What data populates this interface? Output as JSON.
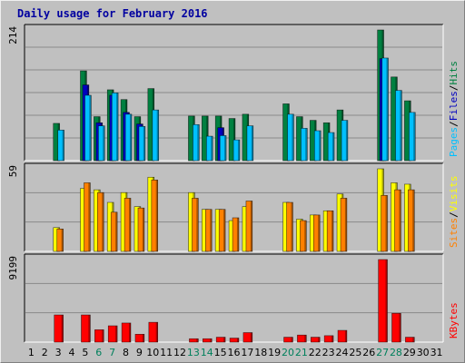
{
  "chart_data": {
    "type": "bar",
    "title": "Daily usage for February 2016",
    "x": [
      "1",
      "2",
      "3",
      "4",
      "5",
      "6",
      "7",
      "8",
      "9",
      "10",
      "11",
      "12",
      "13",
      "14",
      "15",
      "16",
      "17",
      "18",
      "19",
      "20",
      "21",
      "22",
      "23",
      "24",
      "25",
      "26",
      "27",
      "28",
      "29",
      "30",
      "31"
    ],
    "weekend_days": [
      "6",
      "7",
      "13",
      "14",
      "20",
      "21",
      "27",
      "28"
    ],
    "colors": {
      "hits": "#008040",
      "files": "#0000c0",
      "pages": "#00c0ff",
      "visits": "#ffff00",
      "sites": "#ff8000",
      "kbytes": "#ff0000",
      "weekend_label": "#00805c",
      "weekday_label": "#000000",
      "title": "#0000a0",
      "plot_bg": "#c0c0c0",
      "grid": "#a0a0a0"
    },
    "panels": [
      {
        "id": "traffic",
        "ymax_label": "214",
        "ymax": 214,
        "legend": [
          {
            "text": "Pages",
            "color": "#00c0ff"
          },
          {
            "text": "/",
            "color": "#000000"
          },
          {
            "text": "Files",
            "color": "#0000c0"
          },
          {
            "text": "/",
            "color": "#000000"
          },
          {
            "text": "Hits",
            "color": "#008040"
          }
        ],
        "series": [
          {
            "name": "Hits",
            "values": [
              0,
              0,
              61,
              0,
              147,
              72,
              116,
              100,
              72,
              118,
              0,
              0,
              73,
              73,
              73,
              69,
              76,
              0,
              0,
              93,
              72,
              66,
              62,
              83,
              0,
              0,
              214,
              137,
              98,
              0,
              0
            ]
          },
          {
            "name": "Files",
            "values": [
              0,
              0,
              0,
              0,
              124,
              62,
              107,
              79,
              60,
              0,
              0,
              0,
              0,
              0,
              54,
              0,
              0,
              0,
              0,
              0,
              0,
              0,
              0,
              0,
              0,
              0,
              167,
              0,
              0,
              0,
              0
            ]
          },
          {
            "name": "Pages",
            "values": [
              0,
              0,
              50,
              0,
              107,
              57,
              111,
              76,
              56,
              83,
              0,
              0,
              59,
              40,
              41,
              34,
              57,
              0,
              0,
              76,
              53,
              49,
              46,
              66,
              0,
              0,
              168,
              115,
              79,
              0,
              0
            ]
          }
        ]
      },
      {
        "id": "visitors",
        "ymax_label": "59",
        "ymax": 59,
        "legend": [
          {
            "text": "Sites",
            "color": "#ff8000"
          },
          {
            "text": "/",
            "color": "#000000"
          },
          {
            "text": "Visits",
            "color": "#ffff00"
          }
        ],
        "series": [
          {
            "name": "Visits",
            "values": [
              0,
              0,
              17,
              0,
              45,
              44,
              35,
              42,
              32,
              53,
              0,
              0,
              42,
              30,
              30,
              22,
              32,
              0,
              0,
              35,
              23,
              26,
              29,
              41,
              0,
              0,
              59,
              49,
              48,
              0,
              0
            ]
          },
          {
            "name": "Sites",
            "values": [
              0,
              0,
              16,
              0,
              49,
              42,
              28,
              38,
              31,
              51,
              0,
              0,
              38,
              30,
              30,
              24,
              36,
              0,
              0,
              35,
              22,
              26,
              29,
              38,
              0,
              0,
              40,
              44,
              44,
              0,
              0
            ]
          }
        ]
      },
      {
        "id": "kbytes",
        "ymax_label": "9199",
        "ymax": 9199,
        "legend": [
          {
            "text": "KBytes",
            "color": "#ff0000"
          }
        ],
        "series": [
          {
            "name": "KBytes",
            "values": [
              0,
              0,
              3030,
              0,
              3030,
              1380,
              1820,
              2130,
              880,
              2210,
              0,
              0,
              380,
              380,
              550,
              450,
              1060,
              0,
              0,
              550,
              790,
              550,
              720,
              1310,
              0,
              0,
              9199,
              3210,
              550,
              0,
              0
            ]
          }
        ]
      }
    ]
  }
}
